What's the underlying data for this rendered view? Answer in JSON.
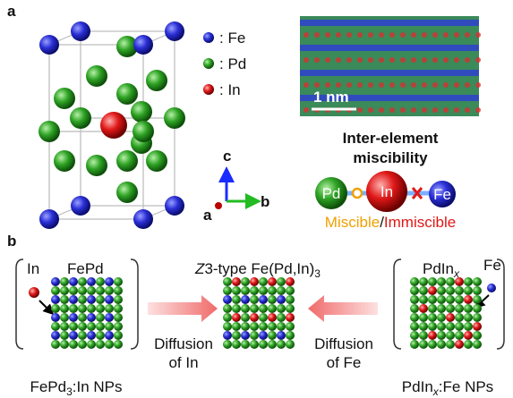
{
  "panel_a": {
    "label": "a",
    "legend": [
      ": Fe",
      ": Pd",
      ": In"
    ],
    "axes": {
      "c": "c",
      "b": "b",
      "a": "a"
    },
    "scale_bar": "1 nm",
    "miscibility": {
      "title_line1": "Inter-element",
      "title_line2": "miscibility",
      "atoms": [
        "Pd",
        "In",
        "Fe"
      ],
      "miscible": "Miscible",
      "separator": "/",
      "immiscible": "Immiscible"
    }
  },
  "panel_b": {
    "label": "b",
    "left": {
      "dopant": "In",
      "host": "FePd",
      "caption": [
        "FePd",
        "3",
        ":In NPs"
      ]
    },
    "center": {
      "title": [
        "Z",
        "3-type Fe(Pd,In)",
        "3"
      ],
      "left_arrow": [
        "Diffusion",
        "of In"
      ],
      "right_arrow": [
        "Diffusion",
        "of Fe"
      ]
    },
    "right": {
      "host": [
        "PdIn",
        "x"
      ],
      "dopant": "Fe",
      "caption": [
        "PdIn",
        "x",
        ":Fe NPs"
      ]
    }
  }
}
